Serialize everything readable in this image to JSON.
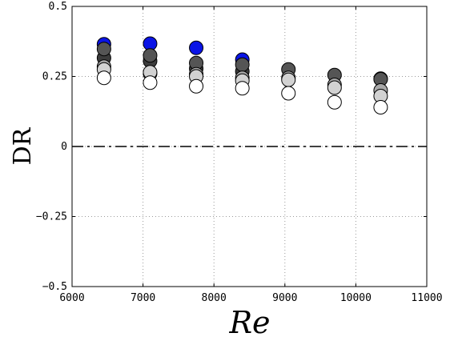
{
  "chart_data": {
    "type": "scatter",
    "xlabel": "Re",
    "ylabel": "DR",
    "xlim": [
      6000,
      11000
    ],
    "ylim": [
      -0.5,
      0.5
    ],
    "x_ticks": [
      6000,
      7000,
      8000,
      9000,
      10000,
      11000
    ],
    "y_ticks": [
      -0.5,
      -0.25,
      0,
      0.25,
      0.5
    ],
    "x_tick_labels": [
      "6000",
      "7000",
      "8000",
      "9000",
      "10000",
      "11000"
    ],
    "y_tick_labels": [
      "−0.5",
      "−0.25",
      "0",
      "0.25",
      "0.5"
    ],
    "grid": true,
    "reference_line_y": 0,
    "series": [
      {
        "color": "#0a14e6",
        "x": [
          6450,
          7100,
          7750,
          8400
        ],
        "y": [
          0.365,
          0.367,
          0.352,
          0.31
        ]
      },
      {
        "color": "#3c3c3c",
        "x": [
          6450,
          7100,
          7750,
          8400,
          10350
        ],
        "y": [
          0.316,
          0.305,
          0.278,
          0.268,
          0.242
        ]
      },
      {
        "color": "#555555",
        "x": [
          6450,
          7100,
          7750,
          8400,
          9050,
          9700,
          10350
        ],
        "y": [
          0.348,
          0.325,
          0.298,
          0.292,
          0.275,
          0.255,
          0.24
        ]
      },
      {
        "color": "#a8a8a8",
        "x": [
          6450,
          7100,
          7750,
          8400,
          9050,
          9700,
          10350
        ],
        "y": [
          0.285,
          0.26,
          0.258,
          0.245,
          0.245,
          0.22,
          0.2
        ]
      },
      {
        "color": "#d2d2d2",
        "x": [
          6450,
          7100,
          7750,
          8400,
          9050,
          9700,
          10350
        ],
        "y": [
          0.275,
          0.265,
          0.25,
          0.235,
          0.238,
          0.21,
          0.18
        ]
      },
      {
        "color": "#ffffff",
        "x": [
          6450,
          7100,
          7750,
          8400,
          9050,
          9700,
          10350
        ],
        "y": [
          0.245,
          0.228,
          0.215,
          0.208,
          0.19,
          0.158,
          0.14
        ]
      }
    ]
  }
}
